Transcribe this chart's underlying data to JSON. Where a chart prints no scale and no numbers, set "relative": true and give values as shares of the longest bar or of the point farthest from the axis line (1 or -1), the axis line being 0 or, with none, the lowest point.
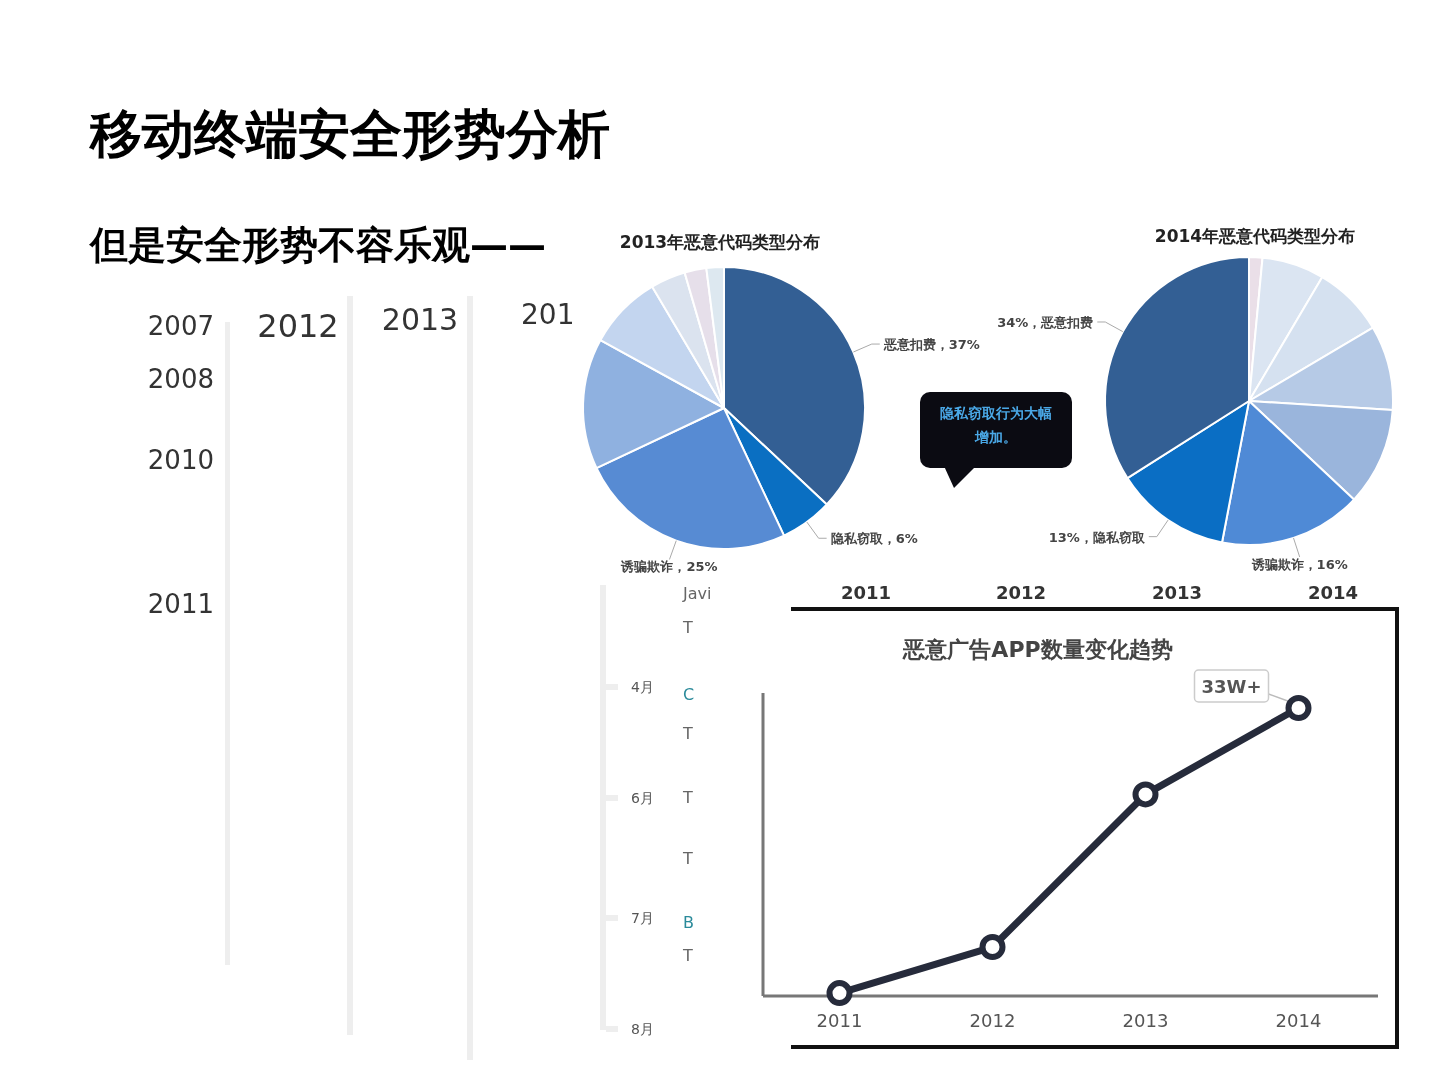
{
  "chart_data": [
    {
      "type": "other",
      "title": "移动终端安全形势分析",
      "subtitle": "但是安全形势不容乐观——",
      "annotations": [
        "2007",
        "2008",
        "2010",
        "2011",
        "2012",
        "2013",
        "201",
        "4月",
        "6月",
        "7月",
        "8月",
        "Javi",
        "T",
        "C",
        "T",
        "T",
        "T",
        "B",
        "T"
      ]
    },
    {
      "type": "pie",
      "title": "2013年恶意代码类型分布",
      "categories": [
        "恶意扣费，37%",
        "隐私窃取，6%",
        "诱骗欺诈，25%",
        null,
        null,
        null,
        null,
        null
      ],
      "values": [
        37,
        6,
        25,
        15,
        8.5,
        4,
        2.5,
        2
      ],
      "colors": [
        "#335f94",
        "#0a6fc2",
        "#578bd3",
        "#8fb1e0",
        "#c3d5ef",
        "#dbe3ef",
        "#e6dfea",
        "#dde8f0"
      ]
    },
    {
      "type": "pie",
      "title": "2014年恶意代码类型分布",
      "categories": [
        null,
        null,
        null,
        null,
        null,
        "诱骗欺诈，16%",
        "13%，隐私窃取",
        "34%，恶意扣费"
      ],
      "values": [
        1.5,
        7,
        8,
        9.5,
        11,
        16,
        13,
        34
      ],
      "colors": [
        "#eadfe8",
        "#dbe5f2",
        "#d5e1f0",
        "#b6cae6",
        "#9ab5dc",
        "#4f8ad6",
        "#0a6ec4",
        "#335f94"
      ],
      "annotations": [
        "隐私窃取行为大幅增加。"
      ]
    },
    {
      "type": "line",
      "title": "恶意广告APP数量变化趋势",
      "categories": [
        "2011",
        "2012",
        "2013",
        "2014"
      ],
      "relative": true,
      "values": [
        0.01,
        0.17,
        0.7,
        1
      ],
      "color": "#262b3b",
      "marker": "circle",
      "annotations": [
        "2011",
        "2012",
        "2013",
        "2014",
        {
          "text": "33W+",
          "x": "2014",
          "y": 1
        }
      ]
    }
  ]
}
